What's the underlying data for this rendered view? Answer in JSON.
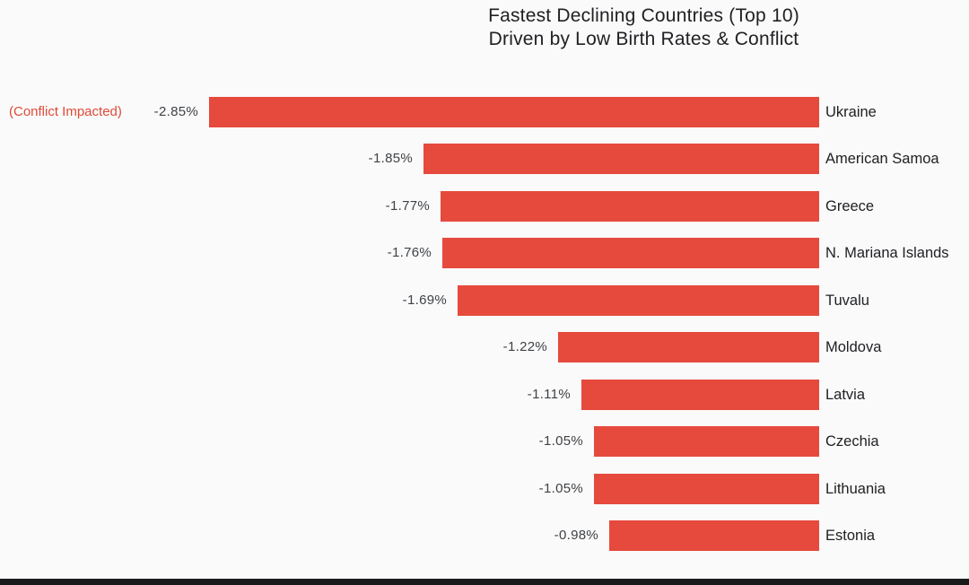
{
  "page": {
    "background_color": "#fafafa",
    "bottom_strip_color": "#1a1a1c"
  },
  "title": {
    "line1": "Fastest Declining Countries (Top 10)",
    "line2": "Driven by Low Birth Rates & Conflict",
    "color": "#202124"
  },
  "chart_data": {
    "type": "bar",
    "orientation": "horizontal",
    "title": "Fastest Declining Countries (Top 10)",
    "subtitle": "Driven by Low Birth Rates & Conflict",
    "categories": [
      "Ukraine",
      "American Samoa",
      "Greece",
      "N. Mariana Islands",
      "Tuvalu",
      "Moldova",
      "Latvia",
      "Czechia",
      "Lithuania",
      "Estonia"
    ],
    "values": [
      -2.85,
      -1.85,
      -1.77,
      -1.76,
      -1.69,
      -1.22,
      -1.11,
      -1.05,
      -1.05,
      -0.98
    ],
    "value_labels": [
      "-2.85%",
      "-1.85%",
      "-1.77%",
      "-1.76%",
      "-1.69%",
      "-1.22%",
      "-1.11%",
      "-1.05%",
      "-1.05%",
      "-0.98%"
    ],
    "annotations": [
      {
        "category": "Ukraine",
        "text": "(Conflict Impacted)",
        "color": "#de4a37"
      }
    ],
    "bar_color": "#e54a3d",
    "value_label_color": "#3f4246",
    "category_label_color": "#202124",
    "xlim": [
      -3,
      0
    ],
    "grid": false,
    "legend": "none",
    "baseline": "right-anchored bars extending left"
  }
}
